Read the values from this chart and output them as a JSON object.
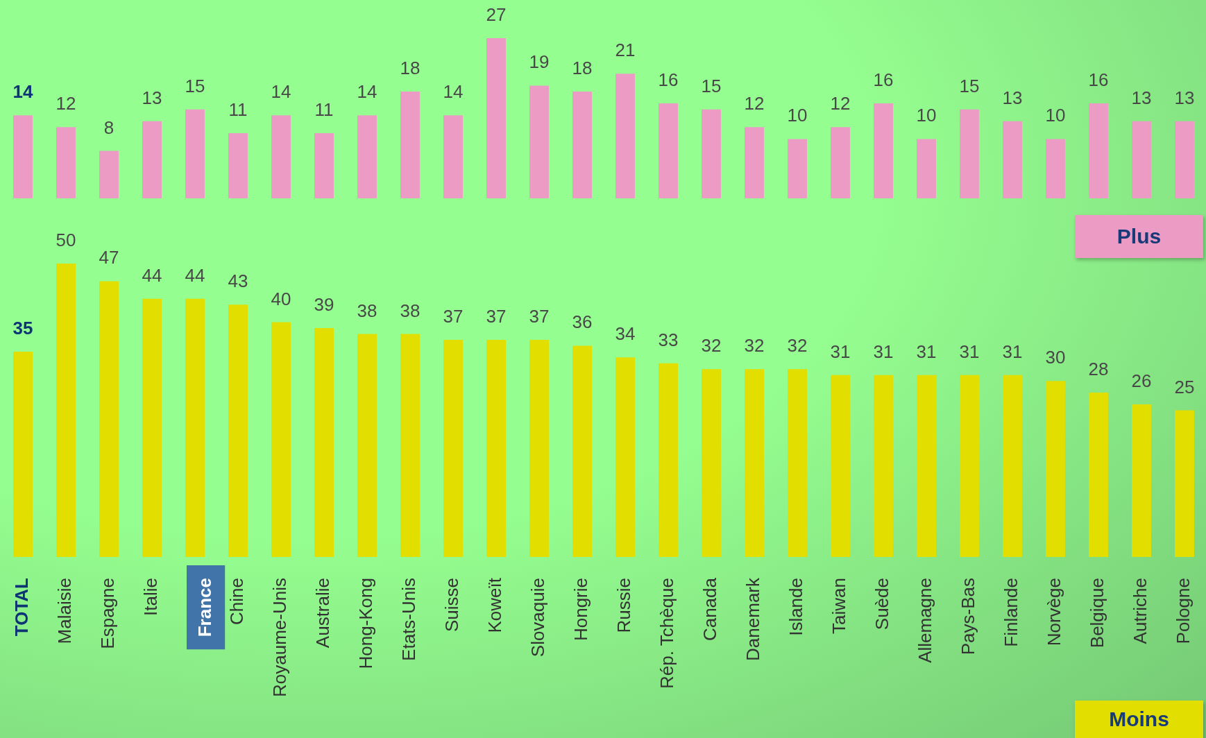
{
  "chart_data": [
    {
      "type": "bar",
      "categories": [
        null,
        null,
        null,
        null,
        null,
        null,
        null,
        null,
        null,
        null,
        null,
        null,
        null,
        null,
        null,
        null,
        null,
        null,
        null,
        null,
        null,
        null,
        null,
        null,
        null,
        null,
        null,
        null
      ],
      "series": [
        {
          "name": "Plus",
          "color": "#ec9cc4",
          "values": [
            14,
            12,
            8,
            13,
            15,
            11,
            14,
            11,
            14,
            18,
            14,
            27,
            19,
            18,
            21,
            16,
            15,
            12,
            10,
            12,
            16,
            10,
            15,
            13,
            10,
            16,
            13,
            13
          ]
        }
      ],
      "data_labels": true,
      "legend": "bottom right"
    },
    {
      "type": "bar",
      "categories": [
        "TOTAL",
        "Malaisie",
        "Espagne",
        "Italie",
        "France",
        "Chine",
        "Royaume-Unis",
        "Australie",
        "Hong-Kong",
        "Etats-Unis",
        "Suisse",
        "Koweït",
        "Slovaquie",
        "Hongrie",
        "Russie",
        "Rép. Tchèque",
        "Canada",
        "Danemark",
        "Islande",
        "Taiwan",
        "Suède",
        "Allemagne",
        "Pays-Bas",
        "Finlande",
        "Norvège",
        "Belgique",
        "Autriche",
        "Pologne"
      ],
      "series": [
        {
          "name": "Moins",
          "color": "#e2de00",
          "values": [
            35,
            50,
            47,
            44,
            44,
            43,
            40,
            39,
            38,
            38,
            37,
            37,
            37,
            36,
            34,
            33,
            32,
            32,
            32,
            31,
            31,
            31,
            31,
            31,
            30,
            28,
            26,
            25
          ]
        }
      ],
      "data_labels": true,
      "legend": "bottom right",
      "tick_labels": "x"
    }
  ]
}
